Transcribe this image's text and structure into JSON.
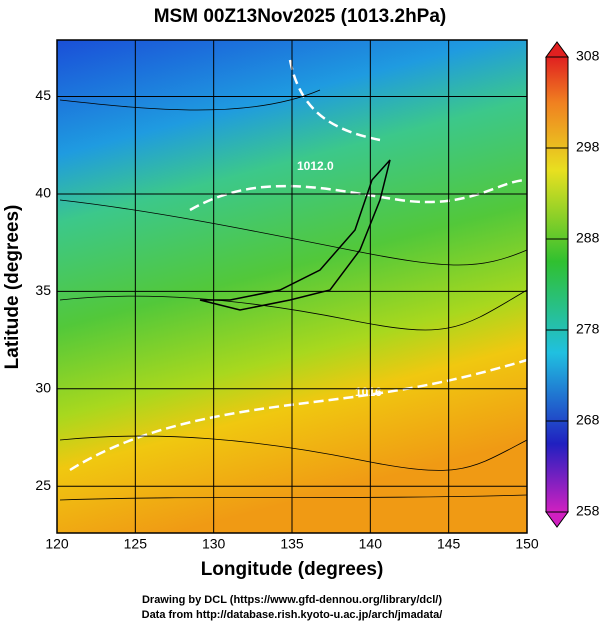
{
  "map": {
    "title": "MSM 00Z13Nov2025 (1013.2hPa)",
    "x_label": "Longitude (degrees)",
    "y_label": "Latitude  (degrees)",
    "xlim": [
      120,
      150
    ],
    "ylim": [
      22.6,
      47.9
    ],
    "xticks": [
      120,
      125,
      130,
      135,
      140,
      145,
      150
    ],
    "yticks": [
      25,
      30,
      35,
      40,
      45
    ],
    "colorbar": {
      "lim": [
        258,
        308
      ],
      "ticks": [
        258,
        268,
        278,
        288,
        298,
        308
      ]
    },
    "contour_labels": [
      "1012.0",
      "1016"
    ],
    "credits": [
      "Drawing by DCL (https://www.gfd-dennou.org/library/dcl/)",
      "Data from http://database.rish.kyoto-u.ac.jp/arch/jmadata/"
    ]
  }
}
